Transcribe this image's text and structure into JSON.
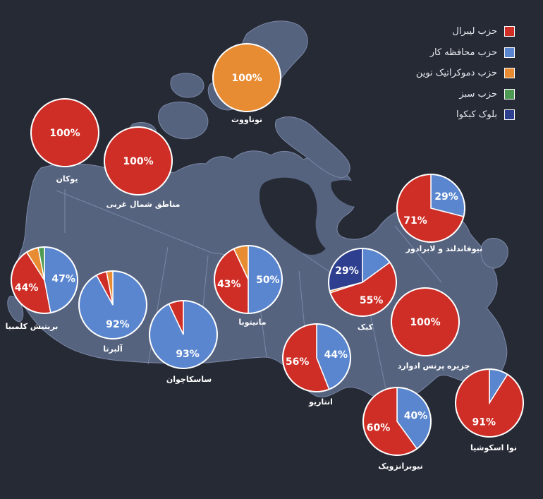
{
  "colors": {
    "background": "#262a35",
    "land": "#55637f",
    "land_edge": "#7a88a6",
    "water": "#262a35",
    "label": "#ffffff"
  },
  "legend": [
    {
      "label": "حزب لیبرال",
      "color": "#cf2e26"
    },
    {
      "label": "حزب محافظه کار",
      "color": "#5a86cf"
    },
    {
      "label": "حزب دموکراتیک نوین",
      "color": "#e88c33"
    },
    {
      "label": "حزب سبز",
      "color": "#4e9a52"
    },
    {
      "label": "بلوک کبکوا",
      "color": "#2f3f8f"
    }
  ],
  "chart_data": {
    "type": "pie",
    "title": "",
    "parties": [
      "حزب لیبرال",
      "حزب محافظه کار",
      "حزب دموکراتیک نوین",
      "حزب سبز",
      "بلوک کبکوا"
    ],
    "provinces": [
      {
        "name": "نوناووت",
        "values": [
          0,
          0,
          100,
          0,
          0
        ],
        "labels": [
          "",
          "",
          "100%",
          "",
          ""
        ]
      },
      {
        "name": "یوکان",
        "values": [
          100,
          0,
          0,
          0,
          0
        ],
        "labels": [
          "100%",
          "",
          "",
          "",
          ""
        ]
      },
      {
        "name": "مناطق شمال غربی",
        "values": [
          100,
          0,
          0,
          0,
          0
        ],
        "labels": [
          "100%",
          "",
          "",
          "",
          ""
        ]
      },
      {
        "name": "نیوفاندلند و لابرادور",
        "values": [
          71,
          29,
          0,
          0,
          0
        ],
        "labels": [
          "71%",
          "29%",
          "",
          "",
          ""
        ]
      },
      {
        "name": "بریتیش کلمبیا",
        "values": [
          44,
          47,
          6,
          3,
          0
        ],
        "labels": [
          "44%",
          "47%",
          "",
          "",
          ""
        ]
      },
      {
        "name": "آلبرتا",
        "values": [
          5,
          92,
          3,
          0,
          0
        ],
        "labels": [
          "",
          "92%",
          "",
          "",
          ""
        ]
      },
      {
        "name": "مانیتوبا",
        "values": [
          43,
          50,
          7,
          0,
          0
        ],
        "labels": [
          "43%",
          "50%",
          "",
          "",
          ""
        ]
      },
      {
        "name": "کبک",
        "values": [
          55,
          15,
          1,
          0,
          29
        ],
        "labels": [
          "55%",
          "",
          "",
          "",
          "29%"
        ]
      },
      {
        "name": "ساسکاچوان",
        "values": [
          7,
          93,
          0,
          0,
          0
        ],
        "labels": [
          "",
          "93%",
          "",
          "",
          ""
        ]
      },
      {
        "name": "جزیره پرنس ادوارد",
        "values": [
          100,
          0,
          0,
          0,
          0
        ],
        "labels": [
          "100%",
          "",
          "",
          "",
          ""
        ]
      },
      {
        "name": "انتاریو",
        "values": [
          56,
          44,
          0,
          0,
          0
        ],
        "labels": [
          "56%",
          "44%",
          "",
          "",
          ""
        ]
      },
      {
        "name": "نیوبرانزویک",
        "values": [
          60,
          40,
          0,
          0,
          0
        ],
        "labels": [
          "60%",
          "40%",
          "",
          "",
          ""
        ]
      },
      {
        "name": "نوا اسکوشیا",
        "values": [
          91,
          9,
          0,
          0,
          0
        ],
        "labels": [
          "91%",
          "",
          "",
          "",
          ""
        ]
      }
    ]
  }
}
